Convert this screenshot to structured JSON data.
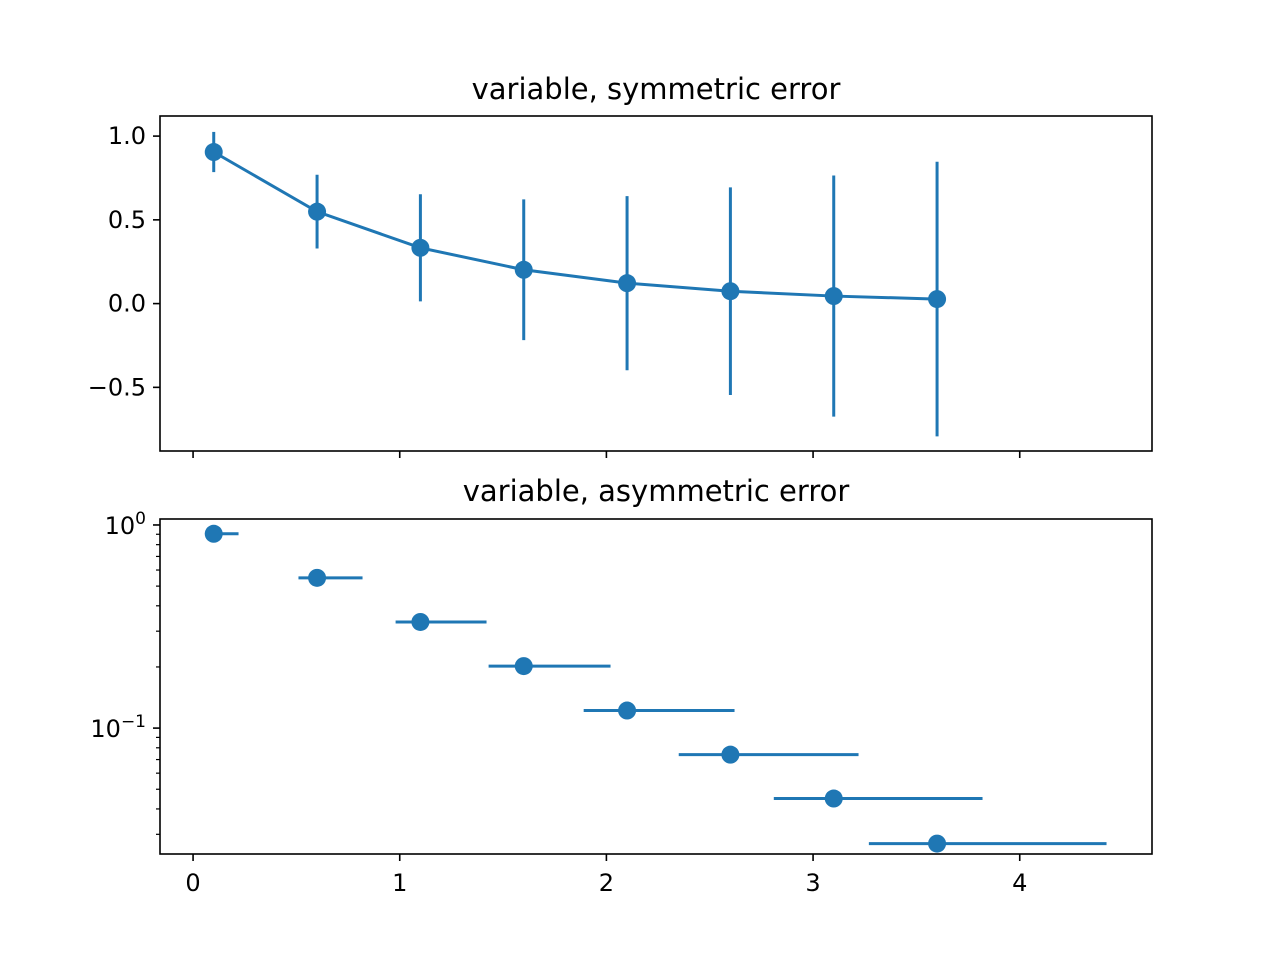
{
  "colors": {
    "series": "#1f77b4",
    "axes": "#000000",
    "background": "#ffffff"
  },
  "chart_data": [
    {
      "type": "errorbar-line",
      "title": "variable, symmetric error",
      "xlabel": "",
      "ylabel": "",
      "x": [
        0.1,
        0.6,
        1.1,
        1.6,
        2.1,
        2.6,
        3.1,
        3.6
      ],
      "y": [
        0.905,
        0.549,
        0.333,
        0.202,
        0.122,
        0.074,
        0.045,
        0.027
      ],
      "yerr": [
        0.12,
        0.22,
        0.32,
        0.42,
        0.52,
        0.62,
        0.72,
        0.82
      ],
      "xlim": [
        -0.16,
        4.64
      ],
      "ylim": [
        -0.88,
        1.12
      ],
      "yscale": "linear",
      "xtick_values": [
        0,
        1,
        2,
        3,
        4
      ],
      "show_xtick_labels": false,
      "yticks": [
        {
          "value": -0.5,
          "label": "−0.5"
        },
        {
          "value": 0.0,
          "label": "0.0"
        },
        {
          "value": 0.5,
          "label": "0.5"
        },
        {
          "value": 1.0,
          "label": "1.0"
        }
      ],
      "grid": false,
      "legend": "none"
    },
    {
      "type": "errorbar-scatter",
      "title": "variable, asymmetric error",
      "xlabel": "",
      "ylabel": "",
      "x": [
        0.1,
        0.6,
        1.1,
        1.6,
        2.1,
        2.6,
        3.1,
        3.6
      ],
      "y": [
        0.905,
        0.549,
        0.333,
        0.202,
        0.122,
        0.074,
        0.045,
        0.027
      ],
      "xerr_lower": [
        0.0,
        0.09,
        0.12,
        0.17,
        0.21,
        0.25,
        0.29,
        0.33
      ],
      "xerr_upper": [
        0.12,
        0.22,
        0.32,
        0.42,
        0.52,
        0.62,
        0.72,
        0.82
      ],
      "xlim": [
        -0.16,
        4.64
      ],
      "ylim": [
        0.024,
        1.07
      ],
      "yscale": "log",
      "xtick_values": [
        0,
        1,
        2,
        3,
        4
      ],
      "xtick_labels": [
        "0",
        "1",
        "2",
        "3",
        "4"
      ],
      "yticks": [
        {
          "value": 1.0,
          "base": "10",
          "exp": "0"
        },
        {
          "value": 0.1,
          "base": "10",
          "exp": "−1"
        }
      ],
      "grid": false,
      "legend": "none"
    }
  ]
}
